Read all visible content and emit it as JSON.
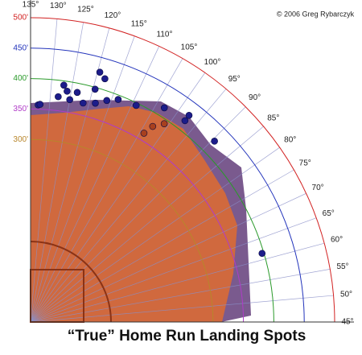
{
  "chart_data": {
    "type": "polar-scatter",
    "title": "“True” Home Run Landing Spots",
    "credit": "© 2006 Greg Rybarczyk",
    "rlim": [
      0,
      500
    ],
    "rticks": [
      {
        "value": 300,
        "label": "300'"
      },
      {
        "value": 350,
        "label": "350'"
      },
      {
        "value": 400,
        "label": "400'"
      },
      {
        "value": 450,
        "label": "450'"
      },
      {
        "value": 500,
        "label": "500'"
      }
    ],
    "rtick_colors": [
      "#b8862b",
      "#b03cc8",
      "#2a9a2a",
      "#2233bb",
      "#d22222"
    ],
    "thetalim": [
      45,
      135
    ],
    "thetaticks": [
      {
        "value": 45,
        "label": "45°"
      },
      {
        "value": 50,
        "label": "50°"
      },
      {
        "value": 55,
        "label": "55°"
      },
      {
        "value": 60,
        "label": "60°"
      },
      {
        "value": 65,
        "label": "65°"
      },
      {
        "value": 70,
        "label": "70°"
      },
      {
        "value": 75,
        "label": "75°"
      },
      {
        "value": 80,
        "label": "80°"
      },
      {
        "value": 85,
        "label": "85°"
      },
      {
        "value": 90,
        "label": "90°"
      },
      {
        "value": 95,
        "label": "95°"
      },
      {
        "value": 100,
        "label": "100°"
      },
      {
        "value": 105,
        "label": "105°"
      },
      {
        "value": 110,
        "label": "110°"
      },
      {
        "value": 115,
        "label": "115°"
      },
      {
        "value": 120,
        "label": "120°"
      },
      {
        "value": 125,
        "label": "125°"
      },
      {
        "value": 130,
        "label": "130°"
      },
      {
        "value": 135,
        "label": "135°"
      }
    ],
    "series": [
      {
        "color": "#1c1c8a",
        "r": [
          357,
          358,
          393,
          384,
          373,
          371,
          385,
          370,
          397,
          426,
          418,
          375,
          385,
          393,
          396,
          415,
          428,
          417,
          424,
          397
        ],
        "theta": [
          133,
          132.5,
          127,
          126,
          128,
          125,
          123.5,
          121.5,
          119.5,
          119.5,
          118,
          118.5,
          116,
          113.5,
          109,
          103,
          97.5,
          97.5,
          89.5,
          61.5
        ]
      },
      {
        "color": "#a8401e",
        "r": [
          362,
          379,
          393
        ],
        "theta": [
          104,
          103,
          101
        ]
      }
    ]
  }
}
